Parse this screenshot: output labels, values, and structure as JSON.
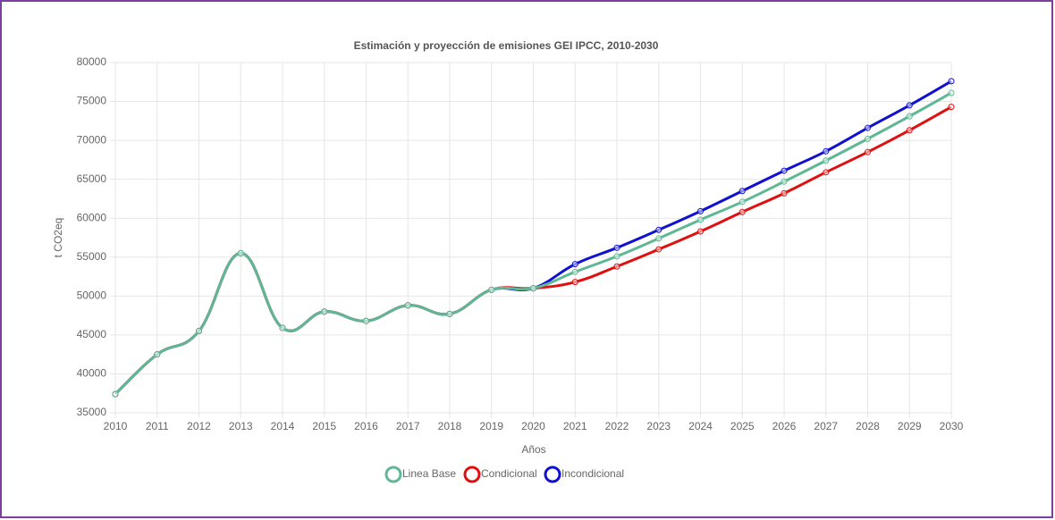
{
  "chart_data": {
    "type": "line",
    "title": "Estimación y proyección de emisiones GEI IPCC, 2010-2030",
    "x_label": "Años",
    "y_label": "t CO2eq",
    "categories": [
      "2010",
      "2011",
      "2012",
      "2013",
      "2014",
      "2015",
      "2016",
      "2017",
      "2018",
      "2019",
      "2020",
      "2021",
      "2022",
      "2023",
      "2024",
      "2025",
      "2026",
      "2027",
      "2028",
      "2029",
      "2030"
    ],
    "series": [
      {
        "name": "Linea Base",
        "color": "#5fb894",
        "values": [
          37400,
          42500,
          45500,
          55500,
          45900,
          48000,
          46800,
          48800,
          47700,
          50800,
          51000,
          53100,
          55100,
          57400,
          59800,
          62100,
          64700,
          67400,
          70200,
          73100,
          76100
        ]
      },
      {
        "name": "Condicional",
        "color": "#e01010",
        "values": [
          37400,
          42500,
          45500,
          55500,
          45900,
          48000,
          46800,
          48800,
          47700,
          50800,
          51000,
          51800,
          53800,
          56000,
          58300,
          60800,
          63200,
          65900,
          68500,
          71300,
          74300
        ]
      },
      {
        "name": "Incondicional",
        "color": "#1010d0",
        "values": [
          37400,
          42500,
          45500,
          55500,
          45900,
          48000,
          46800,
          48800,
          47700,
          50800,
          51000,
          54100,
          56200,
          58500,
          60900,
          63500,
          66100,
          68600,
          71600,
          74500,
          77600
        ]
      }
    ],
    "ylim": [
      35000,
      80000
    ],
    "yticks": [
      35000,
      40000,
      45000,
      50000,
      55000,
      60000,
      65000,
      70000,
      75000,
      80000
    ],
    "grid": true,
    "legend": "bottom"
  }
}
